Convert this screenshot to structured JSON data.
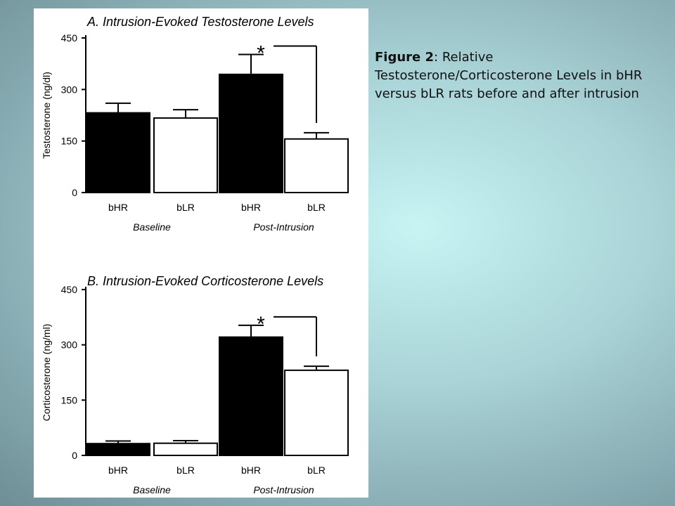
{
  "caption": {
    "label": "Figure 2",
    "text": ": Relative Testosterone/Corticosterone Levels in bHR versus bLR rats before and after intrusion"
  },
  "colors": {
    "filled": "#000000",
    "open": "#ffffff",
    "stroke": "#000000"
  },
  "chart_data": [
    {
      "type": "bar",
      "title": "A. Intrusion-Evoked Testosterone Levels",
      "ylabel": "Testosterone (ng/dl)",
      "ylim": [
        0,
        450
      ],
      "yticks": [
        0,
        150,
        300,
        450
      ],
      "categories": [
        "bHR",
        "bLR",
        "bHR",
        "bLR"
      ],
      "groups": [
        {
          "label": "Baseline",
          "categories": [
            0,
            1
          ]
        },
        {
          "label": "Post-Intrusion",
          "categories": [
            2,
            3
          ]
        }
      ],
      "values": [
        232,
        217,
        344,
        156
      ],
      "errors": [
        28,
        24,
        58,
        18
      ],
      "fills": [
        "filled",
        "open",
        "filled",
        "open"
      ],
      "significance": {
        "label": "*",
        "between": [
          2,
          3
        ]
      },
      "grid": false
    },
    {
      "type": "bar",
      "title": "B. Intrusion-Evoked Corticosterone Levels",
      "ylabel": "Corticosterone (ng/ml)",
      "ylim": [
        0,
        450
      ],
      "yticks": [
        0,
        150,
        300,
        450
      ],
      "categories": [
        "bHR",
        "bLR",
        "bHR",
        "bLR"
      ],
      "groups": [
        {
          "label": "Baseline",
          "categories": [
            0,
            1
          ]
        },
        {
          "label": "Post-Intrusion",
          "categories": [
            2,
            3
          ]
        }
      ],
      "values": [
        32,
        33,
        321,
        231
      ],
      "errors": [
        7,
        7,
        32,
        11
      ],
      "fills": [
        "filled",
        "open",
        "filled",
        "open"
      ],
      "significance": {
        "label": "*",
        "between": [
          2,
          3
        ]
      },
      "grid": false
    }
  ]
}
